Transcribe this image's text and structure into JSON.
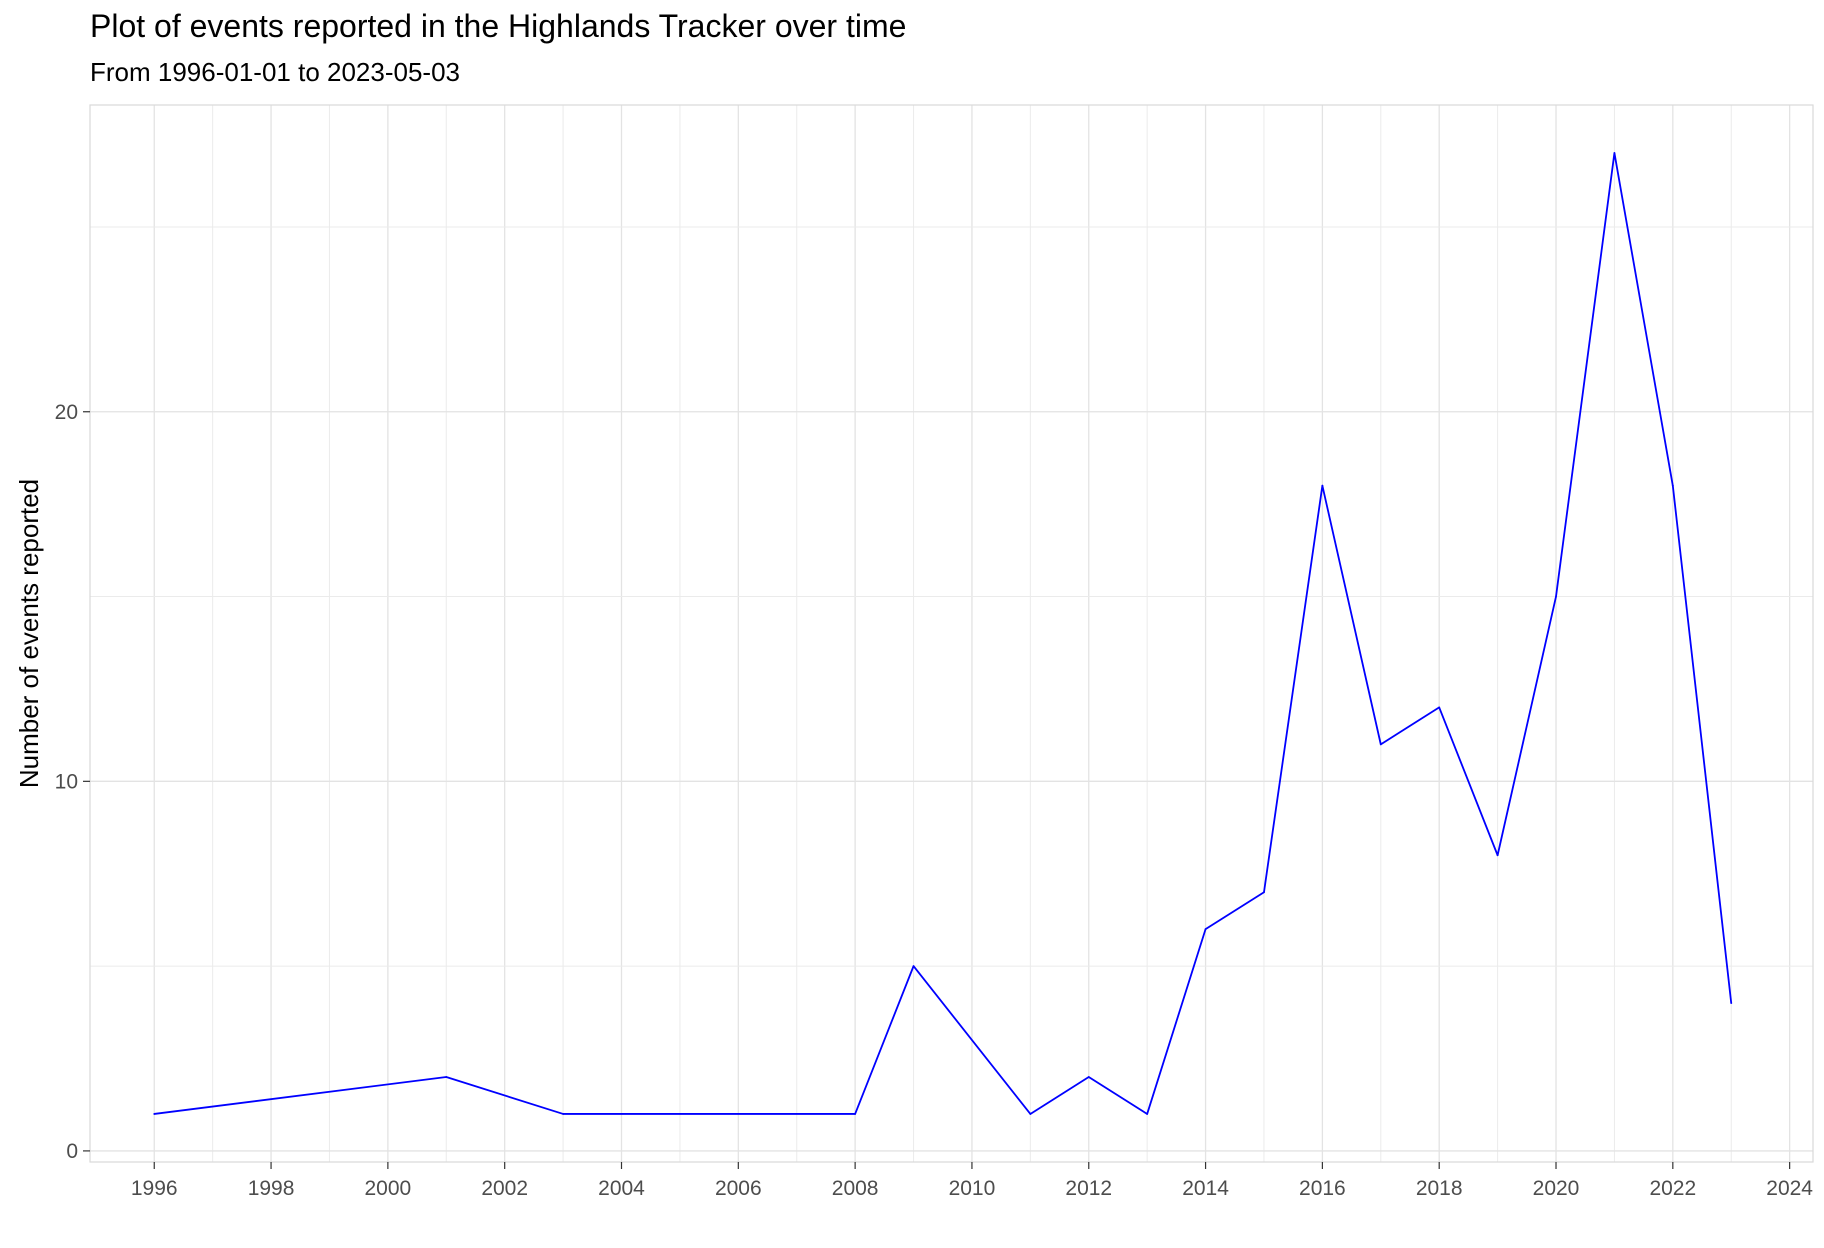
{
  "chart_data": {
    "type": "line",
    "title": "Plot of events reported in the Highlands Tracker over time",
    "subtitle": "From 1996-01-01 to 2023-05-03",
    "xlabel": "",
    "ylabel": "Number of events reported",
    "x_type": "year",
    "xlim": [
      1994.9,
      2024.4
    ],
    "ylim": [
      -0.3,
      28.3
    ],
    "x_ticks": [
      1996,
      1998,
      2000,
      2002,
      2004,
      2006,
      2008,
      2010,
      2012,
      2014,
      2016,
      2018,
      2020,
      2022,
      2024
    ],
    "y_ticks": [
      0,
      10,
      20
    ],
    "y_minor_grid": [
      5,
      15,
      25
    ],
    "grid": true,
    "legend": "none",
    "series": [
      {
        "color": "#0000ff",
        "x": [
          1996,
          2001,
          2003,
          2008,
          2009,
          2011,
          2012,
          2013,
          2014,
          2015,
          2016,
          2017,
          2018,
          2019,
          2020,
          2021,
          2022,
          2023
        ],
        "y": [
          1,
          2,
          1,
          1,
          5,
          1,
          2,
          1,
          6,
          7,
          18,
          11,
          12,
          8,
          15,
          27,
          18,
          4
        ]
      }
    ]
  }
}
